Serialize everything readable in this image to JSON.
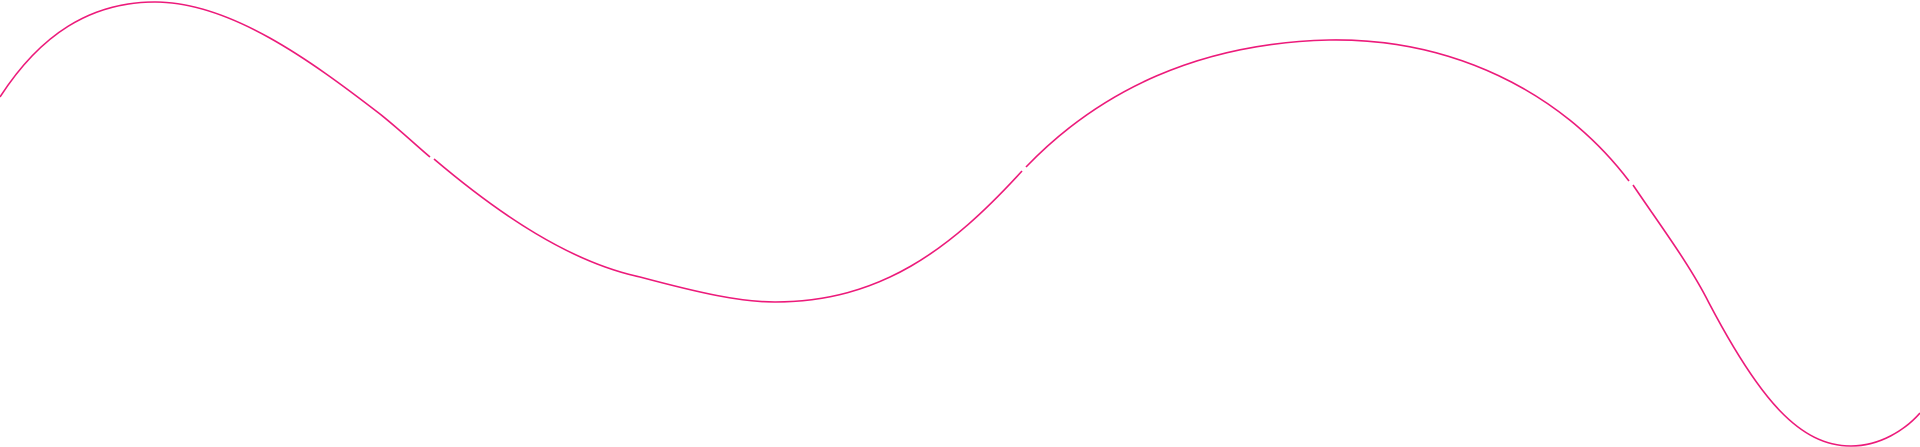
{
  "background_color": "#ffffff",
  "curve": {
    "stroke_color": "#ec1a7a"
  }
}
